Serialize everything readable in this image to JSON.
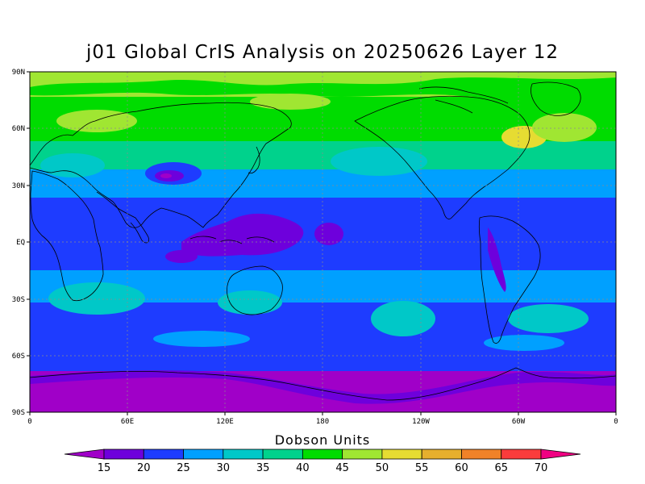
{
  "title": "j01 Global CrIS Analysis on 20250626 Layer 12",
  "map": {
    "projection": "cylindrical-equidistant",
    "lon_range": [
      0,
      360
    ],
    "lat_range": [
      -90,
      90
    ],
    "grid": true,
    "coastlines": true,
    "lat_ticks": [
      "90N",
      "60N",
      "30N",
      "EQ",
      "30S",
      "60S",
      "90S"
    ],
    "lon_ticks": [
      "0",
      "60E",
      "120E",
      "180",
      "120W",
      "60W",
      "0"
    ]
  },
  "colorbar": {
    "title": "Dobson Units",
    "levels": [
      "15",
      "20",
      "25",
      "30",
      "35",
      "40",
      "45",
      "50",
      "55",
      "60",
      "65",
      "70"
    ],
    "colors": [
      "#a000c8",
      "#6e00dc",
      "#1e3cff",
      "#00a0ff",
      "#00c8c8",
      "#00d28c",
      "#00dc00",
      "#a0e632",
      "#e6dc32",
      "#e6af2d",
      "#f08228",
      "#fa3c3c",
      "#f00082"
    ]
  }
}
